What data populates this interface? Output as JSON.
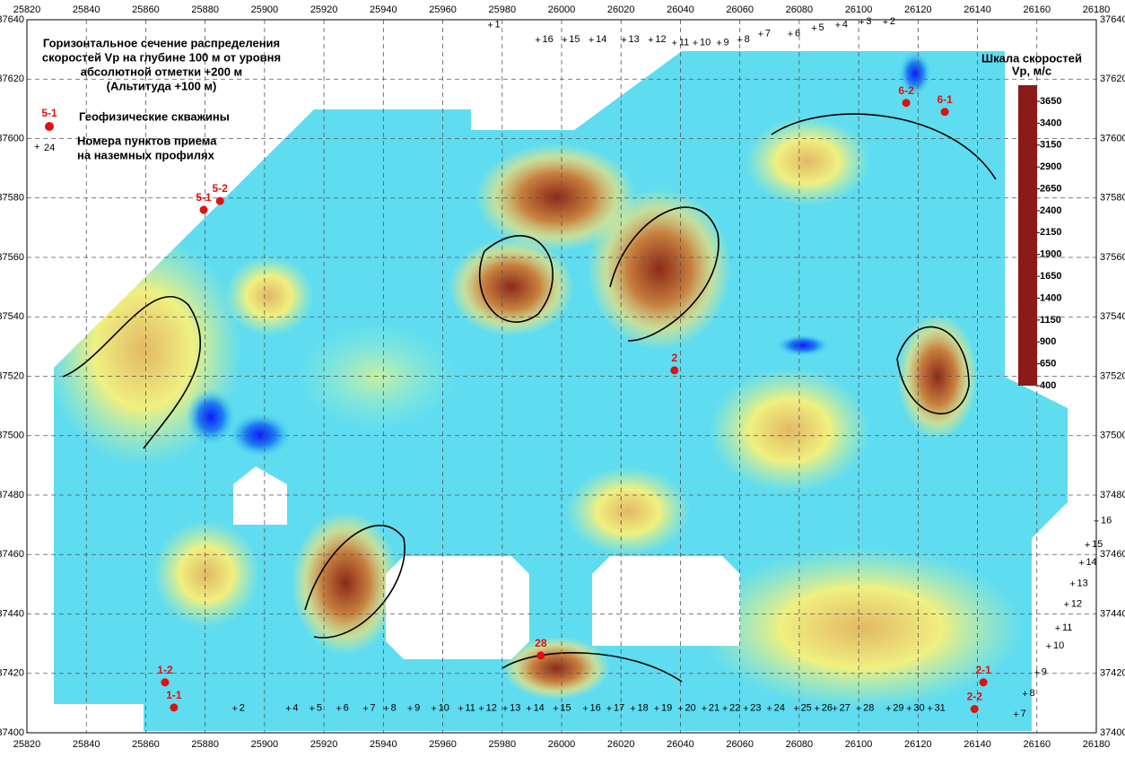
{
  "title_lines": [
    "Горизонтальное сечение распределения",
    "скоростей Vp на глубине 100 м от уровня",
    "абсолютной отметки +200 м",
    "(Альтитуда +100 м)"
  ],
  "legend": {
    "well_sample": "5-1",
    "well_text": "Геофизические скважины",
    "station_sample": "24",
    "station_text_lines": [
      "Номера пунктов приема",
      "на наземных профилях"
    ]
  },
  "colorbar": {
    "title_lines": [
      "Шкала скоростей",
      "Vp, м/с"
    ],
    "lim": [
      400,
      3650
    ],
    "ticks": [
      3650,
      3400,
      3150,
      2900,
      2650,
      2400,
      2150,
      1900,
      1650,
      1400,
      1150,
      900,
      650,
      400
    ],
    "colors": [
      "#8b1a1a",
      "#b5502a",
      "#c8803f",
      "#d9a860",
      "#e8d070",
      "#f0f080",
      "#c8f0a0",
      "#90f0d8",
      "#40d8f0",
      "#20a8f0",
      "#2070f0",
      "#1040f8",
      "#0020ff",
      "#0000ff"
    ]
  },
  "xlim": [
    25820,
    26180
  ],
  "xticks": [
    25820,
    25840,
    25860,
    25880,
    25900,
    25920,
    25940,
    25960,
    25980,
    26000,
    26020,
    26040,
    26060,
    26080,
    26100,
    26120,
    26140,
    26160,
    26180
  ],
  "ylim": [
    37400,
    37640
  ],
  "yticks": [
    37400,
    37420,
    37440,
    37460,
    37480,
    37500,
    37520,
    37540,
    37560,
    37580,
    37600,
    37620,
    37640
  ],
  "grid": true,
  "wells": [
    {
      "label": "5-1",
      "x": 25879.5,
      "y": 37576
    },
    {
      "label": "5-2",
      "x": 25885,
      "y": 37579
    },
    {
      "label": "6-2",
      "x": 26116,
      "y": 37612
    },
    {
      "label": "6-1",
      "x": 26129,
      "y": 37609
    },
    {
      "label": "2",
      "x": 26038,
      "y": 37522
    },
    {
      "label": "28",
      "x": 25993,
      "y": 37426
    },
    {
      "label": "1-2",
      "x": 25866.5,
      "y": 37417
    },
    {
      "label": "1-1",
      "x": 25869.5,
      "y": 37408.5
    },
    {
      "label": "2-1",
      "x": 26142,
      "y": 37417
    },
    {
      "label": "2-2",
      "x": 26139,
      "y": 37408
    }
  ],
  "stations": [
    {
      "label": "1",
      "x": 25976,
      "y": 37638
    },
    {
      "label": "16",
      "x": 25992,
      "y": 37633
    },
    {
      "label": "15",
      "x": 26001,
      "y": 37633
    },
    {
      "label": "14",
      "x": 26010,
      "y": 37633
    },
    {
      "label": "13",
      "x": 26021,
      "y": 37633
    },
    {
      "label": "12",
      "x": 26030,
      "y": 37633
    },
    {
      "label": "11",
      "x": 26038,
      "y": 37632
    },
    {
      "label": "10",
      "x": 26045,
      "y": 37632
    },
    {
      "label": "9",
      "x": 26053,
      "y": 37632
    },
    {
      "label": "8",
      "x": 26060,
      "y": 37633
    },
    {
      "label": "7",
      "x": 26067,
      "y": 37635
    },
    {
      "label": "6",
      "x": 26077,
      "y": 37635
    },
    {
      "label": "5",
      "x": 26085,
      "y": 37637
    },
    {
      "label": "4",
      "x": 26093,
      "y": 37638
    },
    {
      "label": "3",
      "x": 26101,
      "y": 37639
    },
    {
      "label": "2",
      "x": 26109,
      "y": 37639
    },
    {
      "label": "2",
      "x": 25890,
      "y": 37408
    },
    {
      "label": "4",
      "x": 25908,
      "y": 37408
    },
    {
      "label": "5",
      "x": 25916,
      "y": 37408
    },
    {
      "label": "6",
      "x": 25925,
      "y": 37408
    },
    {
      "label": "7",
      "x": 25934,
      "y": 37408
    },
    {
      "label": "8",
      "x": 25941,
      "y": 37408
    },
    {
      "label": "9",
      "x": 25949,
      "y": 37408
    },
    {
      "label": "10",
      "x": 25957,
      "y": 37408
    },
    {
      "label": "11",
      "x": 25966,
      "y": 37408
    },
    {
      "label": "12",
      "x": 25973,
      "y": 37408
    },
    {
      "label": "13",
      "x": 25981,
      "y": 37408
    },
    {
      "label": "14",
      "x": 25989,
      "y": 37408
    },
    {
      "label": "15",
      "x": 25998,
      "y": 37408
    },
    {
      "label": "16",
      "x": 26008,
      "y": 37408
    },
    {
      "label": "17",
      "x": 26016,
      "y": 37408
    },
    {
      "label": "18",
      "x": 26024,
      "y": 37408
    },
    {
      "label": "19",
      "x": 26032,
      "y": 37408
    },
    {
      "label": "20",
      "x": 26040,
      "y": 37408
    },
    {
      "label": "21",
      "x": 26048,
      "y": 37408
    },
    {
      "label": "22",
      "x": 26055,
      "y": 37408
    },
    {
      "label": "23",
      "x": 26062,
      "y": 37408
    },
    {
      "label": "24",
      "x": 26070,
      "y": 37408
    },
    {
      "label": "25",
      "x": 26079,
      "y": 37408
    },
    {
      "label": "26",
      "x": 26086,
      "y": 37408
    },
    {
      "label": "27",
      "x": 26092,
      "y": 37408
    },
    {
      "label": "28",
      "x": 26100,
      "y": 37408
    },
    {
      "label": "29",
      "x": 26110,
      "y": 37408
    },
    {
      "label": "30",
      "x": 26117,
      "y": 37408
    },
    {
      "label": "31",
      "x": 26124,
      "y": 37408
    },
    {
      "label": "7",
      "x": 26153,
      "y": 37406
    },
    {
      "label": "8",
      "x": 26156,
      "y": 37413
    },
    {
      "label": "9",
      "x": 26160,
      "y": 37420
    },
    {
      "label": "10",
      "x": 26164,
      "y": 37429
    },
    {
      "label": "11",
      "x": 26167,
      "y": 37435
    },
    {
      "label": "12",
      "x": 26170,
      "y": 37443
    },
    {
      "label": "13",
      "x": 26172,
      "y": 37450
    },
    {
      "label": "14",
      "x": 26175,
      "y": 37457
    },
    {
      "label": "15",
      "x": 26177,
      "y": 37463
    },
    {
      "label": "16",
      "x": 26180,
      "y": 37471
    }
  ]
}
